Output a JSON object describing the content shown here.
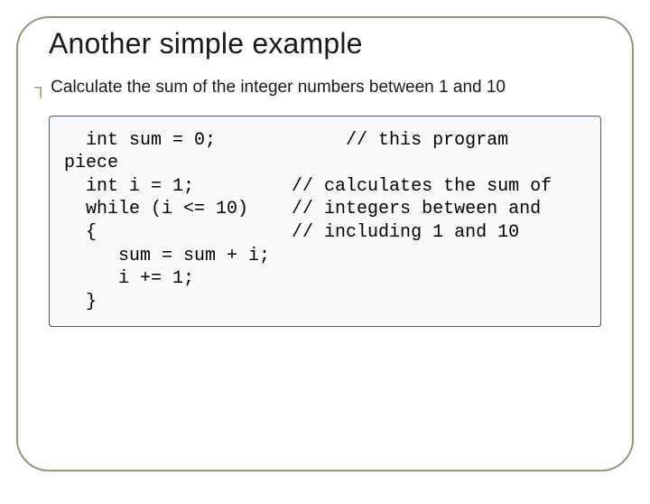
{
  "slide": {
    "title": "Another simple example",
    "bullet_symbol": "┐",
    "bullet_text": "Calculate the sum of the integer numbers between 1 and 10",
    "code": "  int sum = 0;            // this program\npiece\n  int i = 1;         // calculates the sum of\n  while (i <= 10)    // integers between and\n  {                  // including 1 and 10\n     sum = sum + i;\n     i += 1;\n  }",
    "colors": {
      "border": "#8a9b7a",
      "bullet": "#8a9b7a",
      "text": "#1a1a1a",
      "code_border": "#4a5a6a",
      "code_bg": "#f9f9fb",
      "background": "#ffffff"
    },
    "layout": {
      "slide_width": 720,
      "slide_height": 540,
      "border_radius": 36,
      "title_fontsize": 32,
      "bullet_fontsize": 19,
      "code_fontsize": 20,
      "code_font": "Courier New"
    }
  }
}
